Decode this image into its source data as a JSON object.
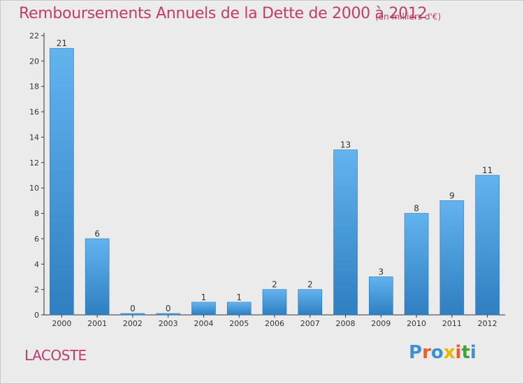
{
  "header": {
    "title": "Remboursements Annuels de la Dette de 2000 à 2012",
    "unit": "(en milliers d'€)"
  },
  "footer": {
    "commune": "LACOSTE",
    "logo_text": "Proxiti"
  },
  "colors": {
    "title": "#c33b6b",
    "bar_top": "#62b3ee",
    "bar_bottom": "#2f7fc1",
    "axis": "#333333",
    "logo_letters": [
      "#3f8fd8",
      "#e85d2a",
      "#3f8fd8",
      "#e6b800",
      "#e85d2a",
      "#3aa63a",
      "#3f8fd8"
    ]
  },
  "chart_data": {
    "type": "bar",
    "title": "Remboursements Annuels de la Dette de 2000 à 2012",
    "xlabel": "",
    "ylabel": "",
    "categories": [
      "2000",
      "2001",
      "2002",
      "2003",
      "2004",
      "2005",
      "2006",
      "2007",
      "2008",
      "2009",
      "2010",
      "2011",
      "2012"
    ],
    "values": [
      21,
      6,
      0,
      0,
      1,
      1,
      2,
      2,
      13,
      3,
      8,
      9,
      11
    ],
    "data_labels": [
      "21",
      "6",
      "0",
      "0",
      "1",
      "1",
      "2",
      "2",
      "13",
      "3",
      "8",
      "9",
      "11"
    ],
    "ylim": [
      0,
      22
    ],
    "yticks": [
      0,
      2,
      4,
      6,
      8,
      10,
      12,
      14,
      16,
      18,
      20,
      22
    ],
    "grid": false,
    "legend": "none"
  }
}
